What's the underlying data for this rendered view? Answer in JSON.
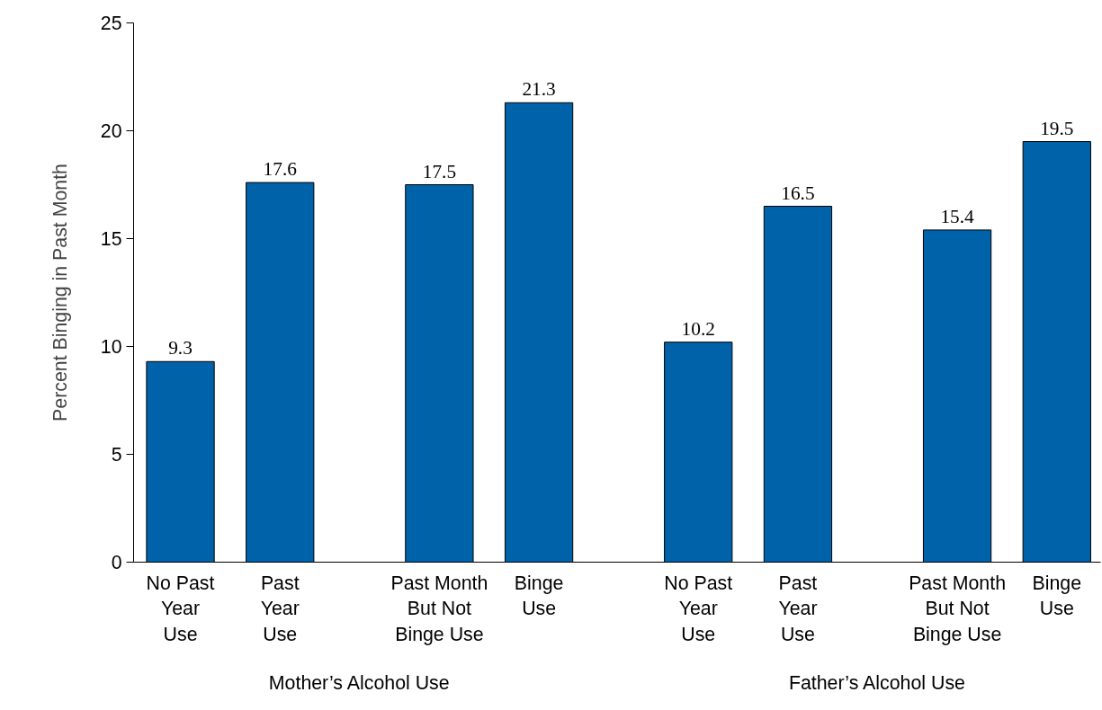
{
  "chart_data": {
    "type": "bar",
    "ylabel": "Percent Binging in Past Month",
    "categories": [
      "No Past\nYear\nUse",
      "Past\nYear\nUse",
      "Past Month\nBut Not\nBinge Use",
      "Binge\nUse",
      "No Past\nYear\nUse",
      "Past\nYear\nUse",
      "Past Month\nBut Not\nBinge Use",
      "Binge\nUse"
    ],
    "values": [
      9.3,
      17.6,
      17.5,
      21.3,
      10.2,
      16.5,
      15.4,
      19.5
    ],
    "color": "#0062a8",
    "data_labels": true,
    "ylim": [
      0,
      25
    ],
    "yticks": [
      0,
      5,
      10,
      15,
      20,
      25
    ],
    "grid": false,
    "annotations": [
      "Mother’s Alcohol Use",
      "Father’s Alcohol Use"
    ]
  }
}
